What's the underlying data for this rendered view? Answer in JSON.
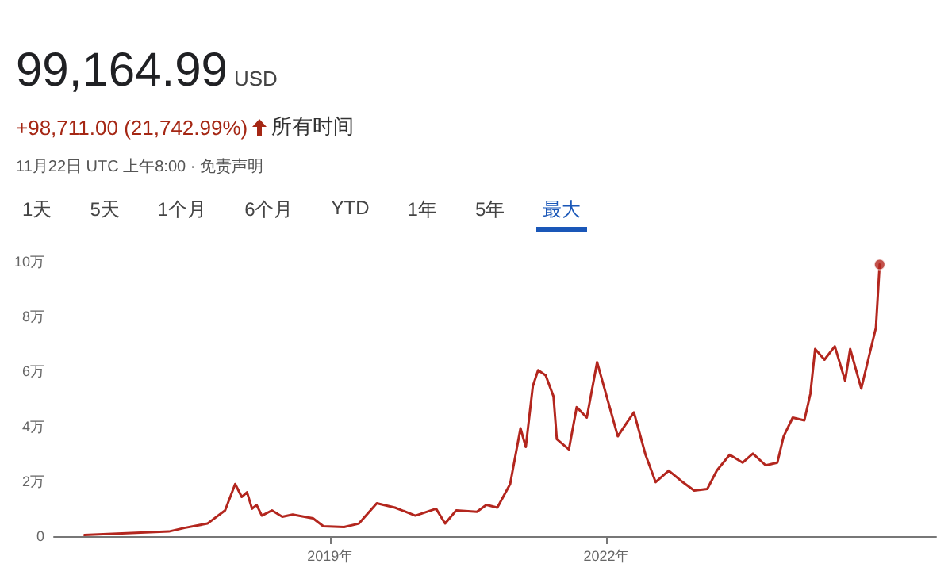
{
  "chart_data": {
    "type": "line",
    "title": "99,164.99",
    "subtitle": "USD",
    "annotations": [
      "+98,711.00 (21,742.99%)",
      "所有时间",
      "11月22日 UTC 上午8:00 · 免责声明",
      "1天",
      "5天",
      "1个月",
      "6个月",
      "YTD",
      "1年",
      "5年",
      "最大"
    ],
    "x": [
      "2016-05-01",
      "2017-04-01",
      "2017-06-01",
      "2017-09-01",
      "2017-11-10",
      "2017-12-20",
      "2018-01-15",
      "2018-02-05",
      "2018-02-25",
      "2018-03-15",
      "2018-04-05",
      "2018-05-15",
      "2018-06-25",
      "2018-08-05",
      "2018-10-25",
      "2018-12-05",
      "2019-02-25",
      "2019-04-25",
      "2019-07-05",
      "2019-09-15",
      "2019-12-05",
      "2020-02-25",
      "2020-04-01",
      "2020-05-15",
      "2020-08-05",
      "2020-09-12",
      "2020-10-25",
      "2020-12-15",
      "2021-01-25",
      "2021-02-15",
      "2021-03-15",
      "2021-04-05",
      "2021-05-05",
      "2021-06-05",
      "2021-06-18",
      "2021-08-05",
      "2021-09-05",
      "2021-10-15",
      "2021-11-25",
      "2022-01-05",
      "2022-02-15",
      "2022-03-15",
      "2022-04-20",
      "2022-06-05",
      "2022-07-15",
      "2022-09-05",
      "2022-10-25",
      "2022-12-15",
      "2023-02-05",
      "2023-03-15",
      "2023-05-05",
      "2023-06-25",
      "2023-08-05",
      "2023-09-25",
      "2023-11-10",
      "2023-12-05",
      "2024-01-10",
      "2024-02-25",
      "2024-03-20",
      "2024-04-08",
      "2024-05-15",
      "2024-06-25",
      "2024-08-05",
      "2024-08-25",
      "2024-10-08",
      "2024-11-12",
      "2024-12-05",
      "2024-12-20"
    ],
    "series": [
      {
        "color": "#b3261e",
        "marker": "none",
        "values": [
          0.04,
          0.17,
          0.3,
          0.46,
          0.94,
          1.9,
          1.43,
          1.6,
          1,
          1.14,
          0.75,
          0.94,
          0.71,
          0.79,
          0.65,
          0.36,
          0.33,
          0.46,
          1.2,
          1.04,
          0.75,
          1,
          0.46,
          0.94,
          0.89,
          1.14,
          1.04,
          1.9,
          3.93,
          3.25,
          5.47,
          6.05,
          5.86,
          5.09,
          3.54,
          3.16,
          4.7,
          4.32,
          6.34,
          4.99,
          3.64,
          4.03,
          4.51,
          2.97,
          1.97,
          2.39,
          2.01,
          1.66,
          1.72,
          2.39,
          2.97,
          2.68,
          3.01,
          2.58,
          2.68,
          3.64,
          4.32,
          4.22,
          5.18,
          6.82,
          6.43,
          6.92,
          5.66,
          6.82,
          5.38,
          6.72,
          7.59,
          9.9
        ]
      },
      {
        "type": "scatter",
        "marker": "circle",
        "color": "#b3261e",
        "x": [
          "2024-12-20"
        ],
        "values": [
          9.9
        ]
      }
    ],
    "xlim": [
      "2016-01-01",
      "2025-08-01"
    ],
    "xticks": [
      {
        "value": "2019-01-01",
        "label": "2019年"
      },
      {
        "value": "2022-01-01",
        "label": "2022年"
      }
    ],
    "ylim": [
      0,
      10
    ],
    "yticks": [
      0,
      {
        "value": 2,
        "label": "2万"
      },
      {
        "value": 4,
        "label": "4万"
      },
      {
        "value": 6,
        "label": "6万"
      },
      {
        "value": 8,
        "label": "8万"
      },
      {
        "value": 10,
        "label": "10万"
      }
    ],
    "grid": false,
    "line_style": "solid"
  }
}
